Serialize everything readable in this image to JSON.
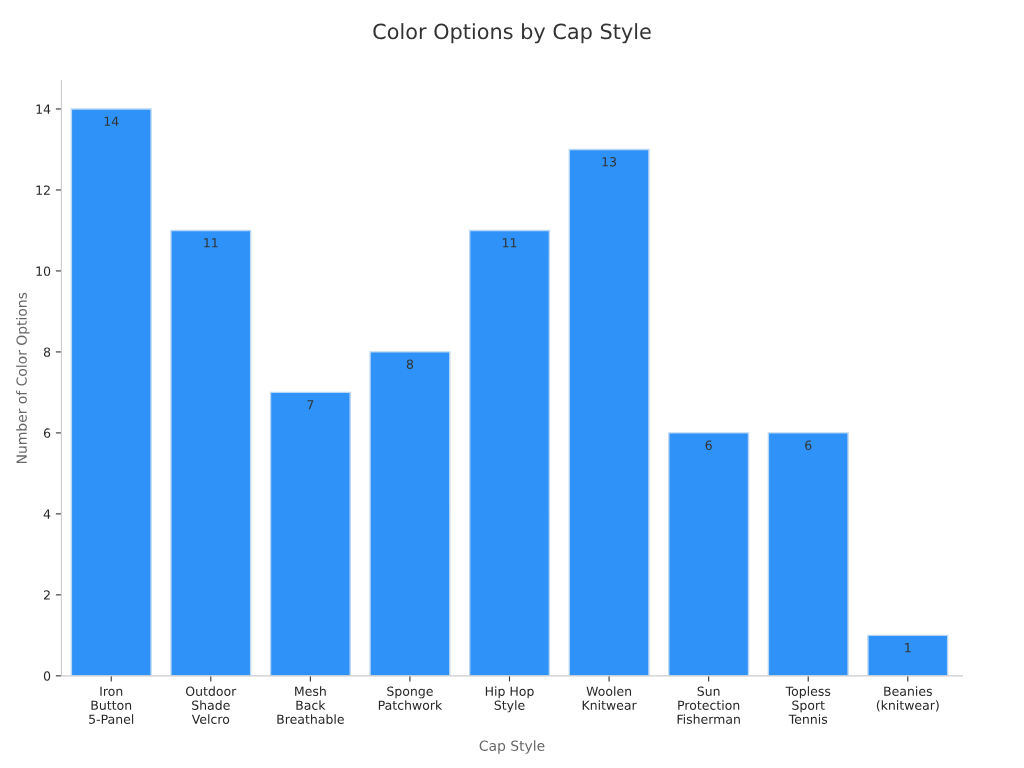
{
  "chart_data": {
    "type": "bar",
    "title": "Color Options by Cap Style",
    "xlabel": "Cap Style",
    "ylabel": "Number of Color Options",
    "categories": [
      "Iron\nButton\n5-Panel",
      "Outdoor\nShade\nVelcro",
      "Mesh\nBack\nBreathable",
      "Sponge\nPatchwork",
      "Hip Hop\nStyle",
      "Woolen\nKnitwear",
      "Sun\nProtection\nFisherman",
      "Topless\nSport\nTennis",
      "Beanies\n(knitwear)"
    ],
    "values": [
      14,
      11,
      7,
      8,
      11,
      13,
      6,
      6,
      1
    ],
    "color": "#2f92f8",
    "ylim": [
      0,
      14.7
    ],
    "yticks": [
      0,
      2,
      4,
      6,
      8,
      10,
      12,
      14
    ],
    "data_labels": true
  }
}
